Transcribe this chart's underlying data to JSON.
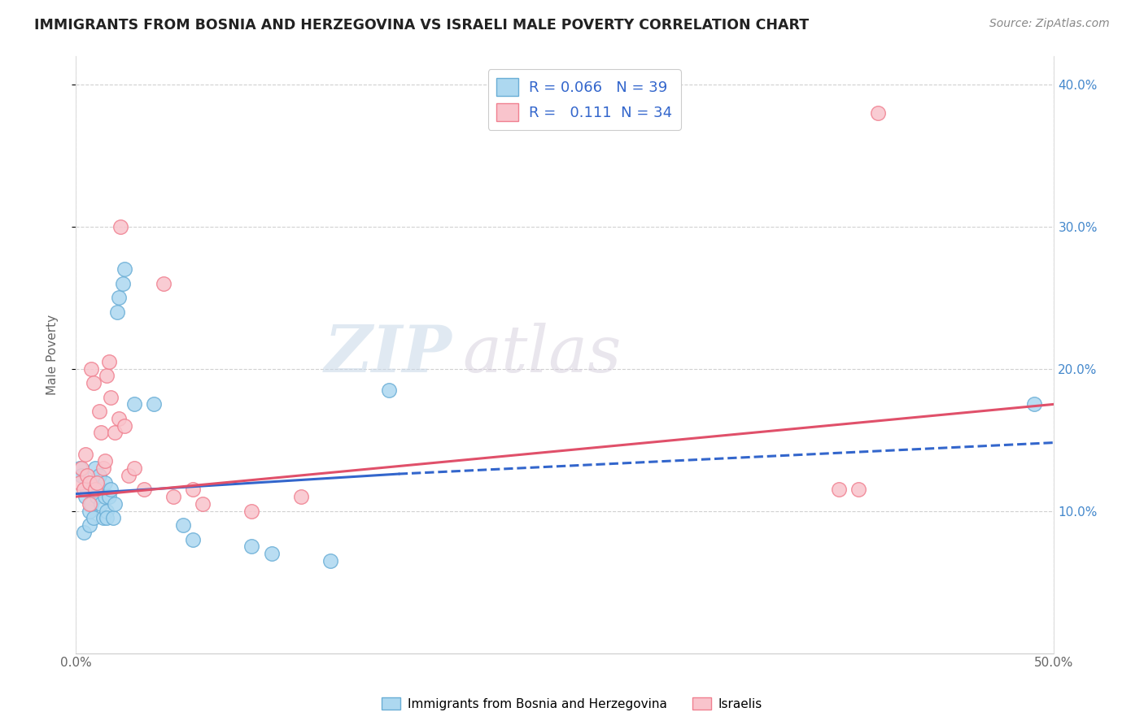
{
  "title": "IMMIGRANTS FROM BOSNIA AND HERZEGOVINA VS ISRAELI MALE POVERTY CORRELATION CHART",
  "source": "Source: ZipAtlas.com",
  "ylabel": "Male Poverty",
  "xlim": [
    0.0,
    0.5
  ],
  "ylim": [
    0.0,
    0.42
  ],
  "series1_name": "Immigrants from Bosnia and Herzegovina",
  "series2_name": "Israelis",
  "series1_color": "#6aaed6",
  "series2_color": "#f08090",
  "series1_fill": "#add8f0",
  "series2_fill": "#f9c4cc",
  "watermark_zip": "ZIP",
  "watermark_atlas": "atlas",
  "background_color": "#ffffff",
  "grid_color": "#cccccc",
  "series1_R": 0.066,
  "series1_N": 39,
  "series2_R": 0.111,
  "series2_N": 34,
  "trend1_color": "#3366cc",
  "trend2_color": "#e0506a",
  "series1_x": [
    0.002,
    0.003,
    0.004,
    0.005,
    0.006,
    0.007,
    0.007,
    0.008,
    0.009,
    0.01,
    0.01,
    0.011,
    0.011,
    0.012,
    0.012,
    0.013,
    0.013,
    0.014,
    0.015,
    0.015,
    0.016,
    0.016,
    0.017,
    0.018,
    0.019,
    0.02,
    0.021,
    0.022,
    0.024,
    0.025,
    0.03,
    0.04,
    0.055,
    0.06,
    0.09,
    0.1,
    0.13,
    0.16,
    0.49
  ],
  "series1_y": [
    0.13,
    0.125,
    0.085,
    0.11,
    0.115,
    0.09,
    0.1,
    0.105,
    0.095,
    0.13,
    0.115,
    0.11,
    0.12,
    0.115,
    0.125,
    0.105,
    0.115,
    0.095,
    0.12,
    0.11,
    0.1,
    0.095,
    0.11,
    0.115,
    0.095,
    0.105,
    0.24,
    0.25,
    0.26,
    0.27,
    0.175,
    0.175,
    0.09,
    0.08,
    0.075,
    0.07,
    0.065,
    0.185,
    0.175
  ],
  "series2_x": [
    0.002,
    0.003,
    0.004,
    0.005,
    0.006,
    0.007,
    0.007,
    0.008,
    0.009,
    0.01,
    0.011,
    0.012,
    0.013,
    0.014,
    0.015,
    0.016,
    0.017,
    0.018,
    0.02,
    0.022,
    0.023,
    0.025,
    0.027,
    0.03,
    0.035,
    0.045,
    0.05,
    0.06,
    0.065,
    0.09,
    0.115,
    0.39,
    0.4,
    0.41
  ],
  "series2_y": [
    0.12,
    0.13,
    0.115,
    0.14,
    0.125,
    0.105,
    0.12,
    0.2,
    0.19,
    0.115,
    0.12,
    0.17,
    0.155,
    0.13,
    0.135,
    0.195,
    0.205,
    0.18,
    0.155,
    0.165,
    0.3,
    0.16,
    0.125,
    0.13,
    0.115,
    0.26,
    0.11,
    0.115,
    0.105,
    0.1,
    0.11,
    0.115,
    0.115,
    0.38
  ],
  "trend1_x0": 0.0,
  "trend1_x1_solid": 0.165,
  "trend1_x1_dash": 0.5,
  "trend1_y0": 0.112,
  "trend1_y1_solid": 0.126,
  "trend1_y1_dash": 0.148,
  "trend2_x0": 0.0,
  "trend2_x1": 0.5,
  "trend2_y0": 0.11,
  "trend2_y1": 0.175
}
